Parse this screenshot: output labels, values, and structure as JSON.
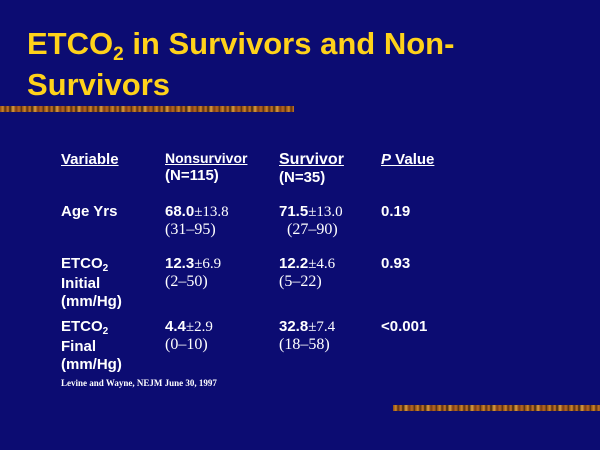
{
  "slide": {
    "title_part1": "ETCO",
    "title_sub": "2",
    "title_part2": " in Survivors and Non-Survivors",
    "citation": "Levine and Wayne, NEJM June 30, 1997",
    "colors": {
      "background": "#0c0c72",
      "title": "#ffd21a",
      "text": "#ffffff"
    }
  },
  "table": {
    "headers": {
      "variable": "Variable",
      "nonsurvivor": "Nonsurvivor",
      "nonsurvivor_n": "(N=115)",
      "survivor": "Survivor",
      "survivor_n": "(N=35)",
      "p_italic": "P",
      "p_rest": " Value"
    },
    "rows": [
      {
        "label_lines": [
          "Age Yrs"
        ],
        "non_mean": "68.0",
        "non_sd": "±13.8",
        "non_range": "(31–95)",
        "surv_mean": "71.5",
        "surv_sd": "±13.0",
        "surv_range": "(27–90)",
        "p": "0.19"
      },
      {
        "label_head": "ETCO",
        "label_sub": "2",
        "label_lines": [
          "Initial",
          "(mm/Hg)"
        ],
        "non_mean": "12.3",
        "non_sd": "±6.9",
        "non_range": "(2–50)",
        "surv_mean": "12.2",
        "surv_sd": "±4.6",
        "surv_range": "(5–22)",
        "p": "0.93"
      },
      {
        "label_head": "ETCO",
        "label_sub": "2",
        "label_lines": [
          "Final",
          "(mm/Hg)"
        ],
        "non_mean": "4.4",
        "non_sd": "±2.9",
        "non_range": "(0–10)",
        "surv_mean": "32.8",
        "surv_sd": "±7.4",
        "surv_range": "(18–58)",
        "p": "<0.001"
      }
    ]
  }
}
